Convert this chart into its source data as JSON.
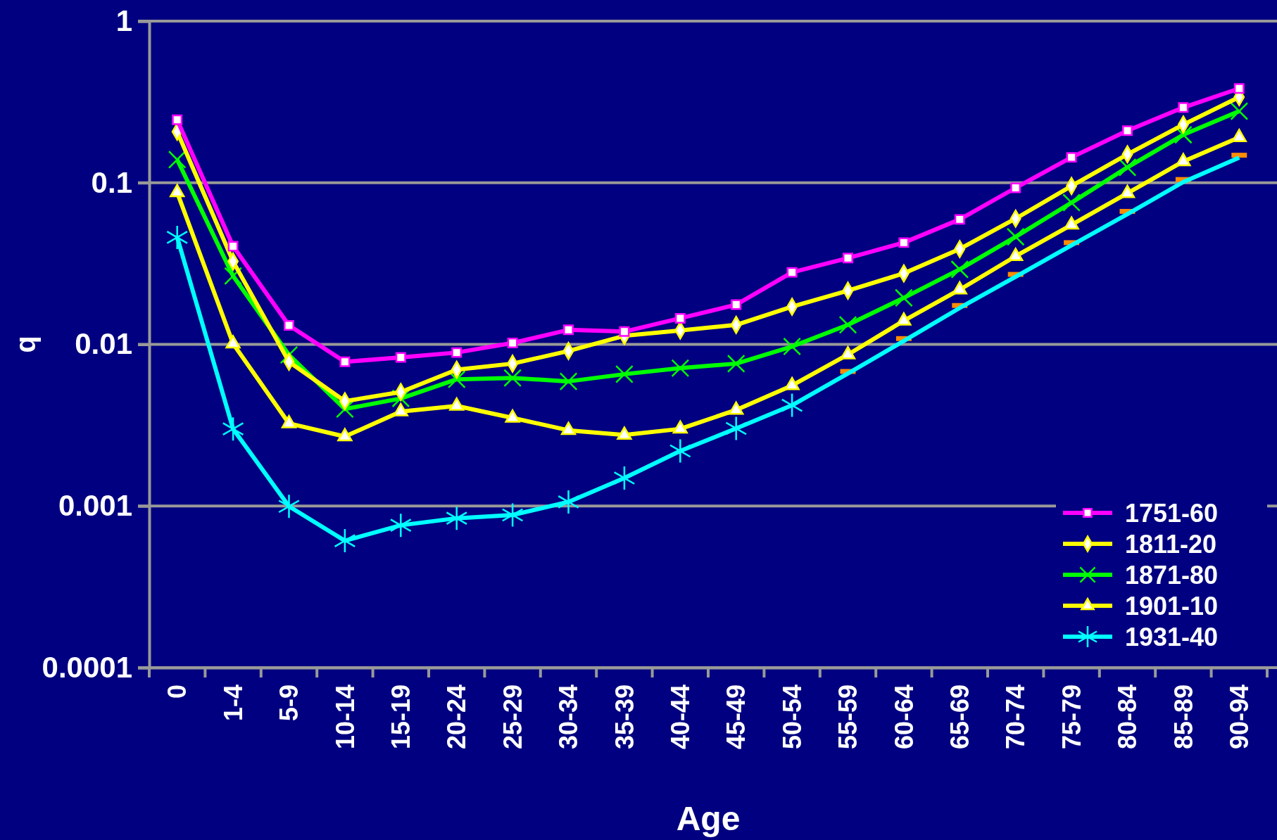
{
  "chart_data": {
    "type": "line",
    "xlabel": "Age",
    "ylabel": "q",
    "log": "y",
    "ylim": [
      0.0001,
      1
    ],
    "yticks": [
      0.0001,
      0.001,
      0.01,
      0.1,
      1
    ],
    "grid": "y",
    "legend": "bottom right",
    "line_style": "solid",
    "categories": [
      "0",
      "1-4",
      "5-9",
      "10-14",
      "15-19",
      "20-24",
      "25-29",
      "30-34",
      "35-39",
      "40-44",
      "45-49",
      "50-54",
      "55-59",
      "60-64",
      "65-69",
      "70-74",
      "75-79",
      "80-84",
      "85-89",
      "90-94"
    ],
    "series": [
      {
        "name": "1751-60",
        "color": "#ff00ff",
        "marker": "square",
        "values": [
          0.245,
          0.0405,
          0.0131,
          0.0078,
          0.0083,
          0.0089,
          0.0102,
          0.0123,
          0.012,
          0.0145,
          0.0176,
          0.0279,
          0.0342,
          0.0426,
          0.0593,
          0.093,
          0.1436,
          0.21,
          0.292,
          0.383
        ]
      },
      {
        "name": "1811-20",
        "color": "#ffff00",
        "marker": "diamond",
        "values": [
          0.207,
          0.0326,
          0.0078,
          0.00445,
          0.00507,
          0.00697,
          0.0076,
          0.0091,
          0.0113,
          0.0122,
          0.0132,
          0.0171,
          0.0215,
          0.0275,
          0.0389,
          0.06,
          0.0955,
          0.15,
          0.229,
          0.339
        ]
      },
      {
        "name": "1871-80",
        "color": "#00ff00",
        "marker": "cross",
        "values": [
          0.139,
          0.0265,
          0.0086,
          0.00398,
          0.00463,
          0.00608,
          0.0062,
          0.0059,
          0.00654,
          0.00713,
          0.0076,
          0.0097,
          0.0132,
          0.0194,
          0.0291,
          0.0463,
          0.0753,
          0.1245,
          0.198,
          0.277
        ]
      },
      {
        "name": "1901-10",
        "color": "#ffff00",
        "marker": "triangle",
        "values": [
          0.087,
          0.0101,
          0.00324,
          0.00269,
          0.00384,
          0.00416,
          0.00351,
          0.00294,
          0.00275,
          0.003,
          0.00393,
          0.00557,
          0.00865,
          0.014,
          0.0218,
          0.0351,
          0.0549,
          0.0861,
          0.1355,
          0.191
        ]
      },
      {
        "name": "1931-40",
        "color": "#00ffff",
        "marker": "star",
        "values": [
          0.0459,
          0.003,
          0.000995,
          0.00061,
          0.00076,
          0.00084,
          0.00088,
          0.00106,
          0.00149,
          0.00219,
          0.00302,
          0.0042,
          null,
          null,
          null,
          null,
          null,
          null,
          null,
          null
        ]
      },
      {
        "color": "#00ffff",
        "marker": "none",
        "values": [
          null,
          null,
          null,
          null,
          null,
          null,
          null,
          null,
          null,
          null,
          null,
          0.0042,
          0.0066,
          0.0105,
          0.0168,
          0.0262,
          0.041,
          0.064,
          0.101,
          0.143
        ]
      },
      {
        "type": "scatter",
        "color": "#ff8c00",
        "values": [
          null,
          null,
          null,
          null,
          null,
          null,
          null,
          null,
          null,
          null,
          null,
          null,
          0.0068,
          0.01086,
          0.0174,
          0.0271,
          0.0426,
          0.0665,
          0.1047,
          0.148
        ]
      }
    ]
  }
}
